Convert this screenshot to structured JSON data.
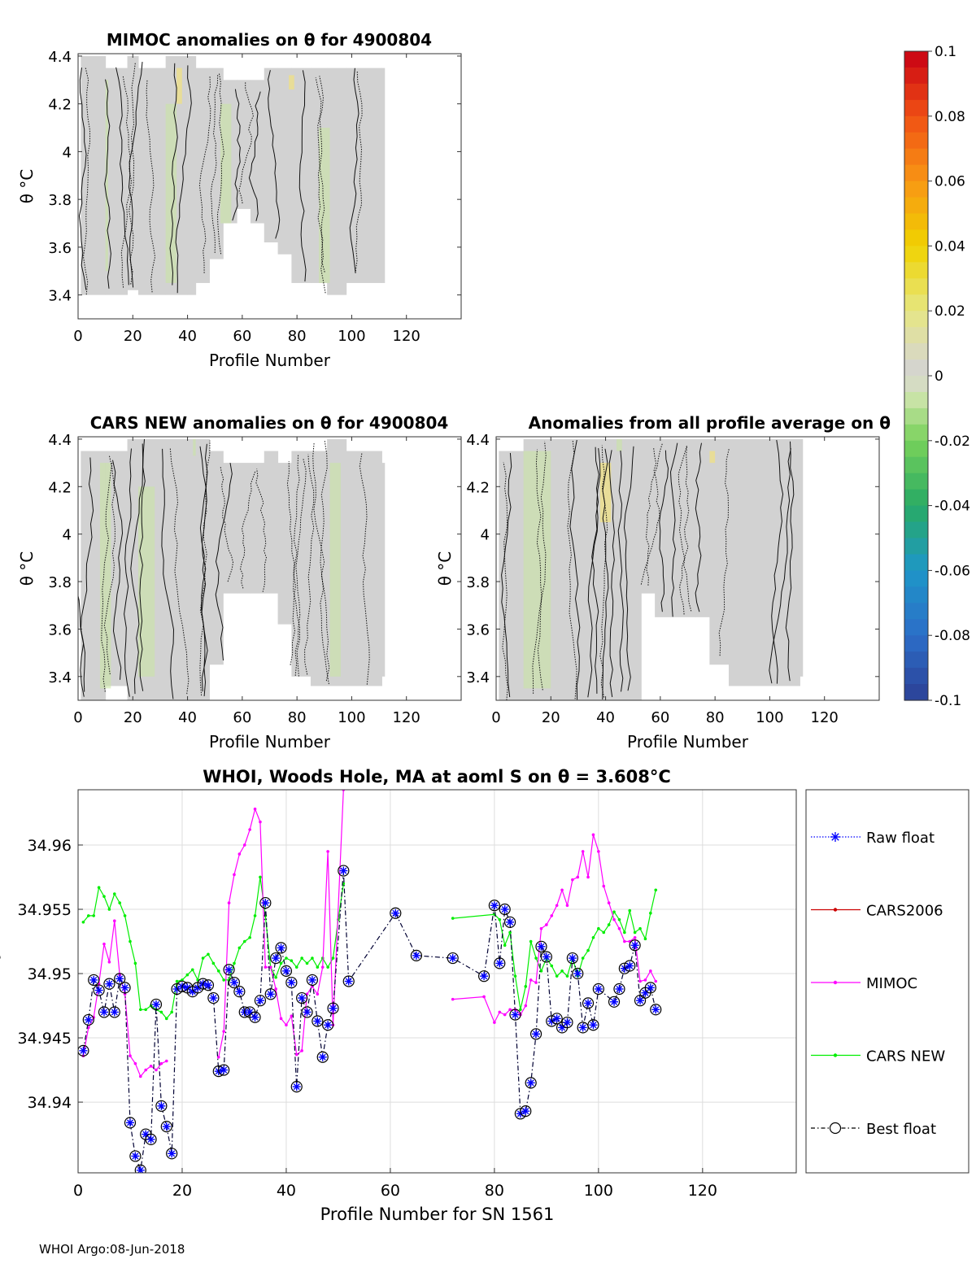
{
  "colors": {
    "raw": "#0000ff",
    "cars2006": "#cc0000",
    "mimoc": "#ff00ff",
    "carsnew": "#00ee00",
    "best": "#000033",
    "base": "#d2d2d2",
    "grid": "#dddddd"
  },
  "colorbar": {
    "ticks": [
      "0.1",
      "0.08",
      "0.06",
      "0.04",
      "0.02",
      "0",
      "-0.02",
      "-0.04",
      "-0.06",
      "-0.08",
      "-0.1"
    ],
    "range": [
      -0.1,
      0.1
    ]
  },
  "chart_data": [
    {
      "id": "mimoc",
      "type": "heatmap",
      "title": "MIMOC anomalies on θ  for 4900804",
      "xlabel": "Profile Number",
      "ylabel": "θ °C",
      "xlim": [
        0,
        140
      ],
      "ylim": [
        3.3,
        4.41
      ],
      "xticks": [
        "0",
        "20",
        "40",
        "60",
        "80",
        "100",
        "120"
      ],
      "yticks": [
        "3.4",
        "3.6",
        "3.8",
        "4",
        "4.2",
        "4.4"
      ],
      "bounds": [
        [
          1,
          3.4,
          4.4
        ],
        [
          10,
          3.4,
          4.35
        ],
        [
          18,
          3.42,
          4.4
        ],
        [
          22,
          3.4,
          4.35
        ],
        [
          32,
          3.4,
          4.4
        ],
        [
          40,
          3.4,
          4.4
        ],
        [
          43,
          3.45,
          4.35
        ],
        [
          48,
          3.55,
          4.35
        ],
        [
          53,
          3.7,
          4.3
        ],
        [
          58,
          3.76,
          4.3
        ],
        [
          63,
          3.7,
          4.3
        ],
        [
          68,
          3.62,
          4.35
        ],
        [
          73,
          3.57,
          4.35
        ],
        [
          78,
          3.45,
          4.35
        ],
        [
          85,
          3.45,
          4.35
        ],
        [
          91,
          3.4,
          4.35
        ],
        [
          98,
          3.45,
          4.35
        ],
        [
          106,
          3.45,
          4.35
        ],
        [
          111,
          3.45,
          4.35
        ]
      ],
      "greens": [
        [
          10,
          11,
          3.5,
          4.3
        ],
        [
          32,
          36,
          3.45,
          4.2
        ],
        [
          52,
          56,
          3.7,
          4.2
        ],
        [
          88,
          92,
          3.45,
          4.1
        ]
      ],
      "yellows": [
        [
          77,
          79,
          4.26,
          4.32
        ],
        [
          36,
          38,
          4.2,
          4.35
        ]
      ],
      "contours": 22
    },
    {
      "id": "carsnew",
      "type": "heatmap",
      "title": "CARS NEW anomalies on θ for 4900804",
      "xlabel": "Profile Number",
      "ylabel": "θ °C",
      "xlim": [
        0,
        140
      ],
      "ylim": [
        3.3,
        4.41
      ],
      "xticks": [
        "0",
        "20",
        "40",
        "60",
        "80",
        "100",
        "120"
      ],
      "yticks": [
        "3.4",
        "3.6",
        "3.8",
        "4",
        "4.2",
        "4.4"
      ],
      "bounds": [
        [
          1,
          3.3,
          4.35
        ],
        [
          10,
          3.36,
          4.35
        ],
        [
          18,
          3.3,
          4.4
        ],
        [
          30,
          3.3,
          4.4
        ],
        [
          42,
          3.3,
          4.4
        ],
        [
          48,
          3.45,
          4.35
        ],
        [
          53,
          3.75,
          4.3
        ],
        [
          58,
          3.75,
          4.3
        ],
        [
          63,
          3.75,
          4.3
        ],
        [
          68,
          3.75,
          4.35
        ],
        [
          73,
          3.62,
          4.3
        ],
        [
          78,
          3.4,
          4.35
        ],
        [
          85,
          3.36,
          4.35
        ],
        [
          91,
          3.36,
          4.4
        ],
        [
          98,
          3.36,
          4.35
        ],
        [
          106,
          3.36,
          4.35
        ],
        [
          111,
          3.4,
          4.3
        ]
      ],
      "greens": [
        [
          8,
          12,
          3.35,
          4.3
        ],
        [
          22,
          28,
          3.4,
          4.2
        ],
        [
          92,
          96,
          3.4,
          4.3
        ],
        [
          42,
          43,
          4.33,
          4.4
        ]
      ],
      "yellows": [],
      "contours": 24
    },
    {
      "id": "avg",
      "type": "heatmap",
      "title": "Anomalies from all profile average on θ",
      "xlabel": "Profile Number",
      "ylabel": "θ °C",
      "xlim": [
        0,
        140
      ],
      "ylim": [
        3.3,
        4.41
      ],
      "xticks": [
        "0",
        "20",
        "40",
        "60",
        "80",
        "100",
        "120"
      ],
      "yticks": [
        "3.4",
        "3.6",
        "3.8",
        "4",
        "4.2",
        "4.4"
      ],
      "bounds": [
        [
          1,
          3.3,
          4.35
        ],
        [
          10,
          3.3,
          4.4
        ],
        [
          18,
          3.3,
          4.4
        ],
        [
          30,
          3.3,
          4.4
        ],
        [
          42,
          3.3,
          4.4
        ],
        [
          48,
          3.3,
          4.4
        ],
        [
          53,
          3.75,
          4.4
        ],
        [
          58,
          3.65,
          4.4
        ],
        [
          63,
          3.65,
          4.4
        ],
        [
          68,
          3.65,
          4.4
        ],
        [
          73,
          3.65,
          4.4
        ],
        [
          78,
          3.45,
          4.4
        ],
        [
          85,
          3.36,
          4.4
        ],
        [
          91,
          3.36,
          4.4
        ],
        [
          98,
          3.36,
          4.4
        ],
        [
          106,
          3.36,
          4.4
        ],
        [
          111,
          3.4,
          4.4
        ]
      ],
      "greens": [
        [
          10,
          20,
          3.35,
          4.35
        ],
        [
          44,
          46,
          4.35,
          4.4
        ]
      ],
      "yellows": [
        [
          38,
          42,
          4.05,
          4.3
        ],
        [
          78,
          80,
          4.3,
          4.35
        ]
      ],
      "contours": 24
    },
    {
      "id": "salinity",
      "type": "line",
      "title": "WHOI, Woods Hole, MA at aoml S on θ = 3.608°C",
      "xlabel": "Profile Number for SN 1561",
      "ylabel": "Salinity",
      "xlim": [
        0,
        138
      ],
      "ylim": [
        34.9345,
        34.9643
      ],
      "xticks": [
        0,
        20,
        40,
        60,
        80,
        100,
        120
      ],
      "yticks": [
        34.94,
        34.945,
        34.95,
        34.955,
        34.96
      ],
      "ytick_labels": [
        "34.94",
        "34.945",
        "34.95",
        "34.955",
        "34.96"
      ],
      "legend": [
        "Raw float",
        "CARS2006",
        "MIMOC",
        "CARS NEW",
        "Best float"
      ],
      "legend_position": "outside-right",
      "series": [
        {
          "name": "Best float",
          "x": [
            1,
            2,
            3,
            4,
            5,
            6,
            7,
            8,
            9,
            10,
            11,
            12,
            13,
            14,
            15,
            16,
            17,
            18,
            19,
            20,
            21,
            22,
            23,
            24,
            25,
            26,
            27,
            28,
            29,
            30,
            31,
            32,
            33,
            34,
            35,
            36,
            37,
            38,
            39,
            40,
            41,
            42,
            43,
            44,
            45,
            46,
            47,
            48,
            49,
            51,
            52,
            61,
            65,
            72,
            78,
            80,
            81,
            82,
            83,
            84,
            85,
            86,
            87,
            88,
            89,
            90,
            91,
            92,
            93,
            94,
            95,
            96,
            97,
            98,
            99,
            100,
            103,
            104,
            105,
            106,
            107,
            108,
            109,
            110,
            111
          ],
          "values": [
            34.944,
            34.9464,
            34.9495,
            34.9487,
            34.947,
            34.9492,
            34.947,
            34.9496,
            34.9489,
            34.9384,
            34.9358,
            34.9347,
            34.9375,
            34.9371,
            34.9476,
            34.9397,
            34.9381,
            34.936,
            34.9488,
            34.949,
            34.9489,
            34.9486,
            34.9489,
            34.9492,
            34.9491,
            34.9481,
            34.9424,
            34.9425,
            34.9503,
            34.9493,
            34.9486,
            34.947,
            34.947,
            34.9466,
            34.9479,
            34.9555,
            34.9484,
            34.9512,
            34.952,
            34.9502,
            34.9493,
            34.9412,
            34.9481,
            34.947,
            34.9495,
            34.9463,
            34.9435,
            34.946,
            34.9473,
            34.958,
            34.9494,
            34.9547,
            34.9514,
            34.9512,
            34.9498,
            34.9553,
            34.9508,
            34.955,
            34.954,
            34.9468,
            34.9391,
            34.9393,
            34.9415,
            34.9453,
            34.9521,
            34.9513,
            34.9463,
            34.9465,
            34.9458,
            34.9462,
            34.9512,
            34.95,
            34.9458,
            34.9477,
            34.946,
            34.9488,
            34.9478,
            34.9488,
            34.9504,
            34.9506,
            34.9522,
            34.9479,
            34.9485,
            34.9489,
            34.9472
          ]
        },
        {
          "name": "CARS NEW",
          "x": [
            1,
            2,
            3,
            4,
            5,
            6,
            7,
            8,
            9,
            10,
            11,
            12,
            13,
            14,
            15,
            16,
            17,
            18,
            19,
            20,
            21,
            22,
            23,
            24,
            25,
            26,
            27,
            28,
            29,
            30,
            31,
            32,
            33,
            34,
            35,
            36,
            37,
            38,
            39,
            40,
            41,
            42,
            43,
            44,
            45,
            46,
            47,
            48,
            49,
            50,
            51,
            72,
            80,
            81,
            82,
            83,
            84,
            85,
            86,
            87,
            88,
            89,
            90,
            91,
            92,
            93,
            94,
            95,
            96,
            97,
            98,
            99,
            100,
            101,
            102,
            103,
            104,
            105,
            106,
            107,
            108,
            109,
            110,
            111
          ],
          "values": [
            34.954,
            34.9545,
            34.9545,
            34.9567,
            34.956,
            34.955,
            34.9562,
            34.9555,
            34.9545,
            34.9525,
            34.9508,
            34.9472,
            34.9472,
            34.9475,
            34.9472,
            34.947,
            34.9465,
            34.947,
            34.9494,
            34.9495,
            34.9499,
            34.9503,
            34.9495,
            34.9512,
            34.9515,
            34.9508,
            34.9502,
            34.9495,
            34.9495,
            34.9508,
            34.952,
            34.9525,
            34.9528,
            34.9545,
            34.9575,
            34.9545,
            34.9505,
            34.9497,
            34.9508,
            34.9512,
            34.951,
            34.9505,
            34.9512,
            34.9508,
            34.9512,
            34.9505,
            34.9512,
            34.9505,
            34.9512,
            34.9542,
            34.957,
            34.9543,
            34.9546,
            34.9542,
            34.9522,
            34.9532,
            34.9498,
            34.9472,
            34.949,
            34.9525,
            34.9512,
            34.9502,
            34.9512,
            34.9506,
            34.9498,
            34.9502,
            34.9498,
            34.9512,
            34.9498,
            34.9512,
            34.9518,
            34.9528,
            34.9535,
            34.9532,
            34.9538,
            34.9548,
            34.9542,
            34.9532,
            34.9549,
            34.9532,
            34.9535,
            34.9527,
            34.9547,
            34.9565
          ]
        },
        {
          "name": "MIMOC",
          "x": [
            1,
            2,
            3,
            4,
            5,
            6,
            7,
            8,
            9,
            10,
            11,
            12,
            13,
            14,
            15,
            16,
            17,
            27,
            28,
            29,
            30,
            31,
            32,
            33,
            34,
            35,
            36,
            37,
            38,
            39,
            40,
            41,
            42,
            43,
            44,
            45,
            46,
            47,
            48,
            49,
            51,
            72,
            78,
            80,
            81,
            82,
            83,
            84,
            85,
            86,
            87,
            88,
            89,
            90,
            91,
            92,
            93,
            94,
            95,
            96,
            97,
            98,
            99,
            100,
            101,
            102,
            103,
            104,
            105,
            106,
            107,
            108,
            109,
            110,
            111
          ],
          "values": [
            34.9436,
            34.9458,
            34.9466,
            34.9492,
            34.9523,
            34.9509,
            34.9541,
            34.9499,
            34.9484,
            34.9436,
            34.943,
            34.942,
            34.9425,
            34.9428,
            34.9425,
            34.943,
            34.9432,
            34.9435,
            34.9455,
            34.9555,
            34.9577,
            34.9593,
            34.96,
            34.9612,
            34.9628,
            34.9618,
            34.9505,
            34.9505,
            34.9488,
            34.9465,
            34.946,
            34.9467,
            34.9437,
            34.944,
            34.9484,
            34.949,
            34.9484,
            34.9505,
            34.9595,
            34.946,
            34.9643,
            34.948,
            34.9482,
            34.9462,
            34.947,
            34.9468,
            34.9472,
            34.9472,
            34.9468,
            34.9475,
            34.9495,
            34.9493,
            34.9535,
            34.9538,
            34.9545,
            34.9553,
            34.9565,
            34.9553,
            34.9573,
            34.9575,
            34.9595,
            34.9575,
            34.9608,
            34.9595,
            34.9568,
            34.9555,
            34.9542,
            34.9535,
            34.9525,
            34.9525,
            34.9528,
            34.9494,
            34.9495,
            34.9502,
            34.9494
          ]
        }
      ]
    }
  ],
  "footer": {
    "text": "WHOI Argo:08-Jun-2018"
  }
}
